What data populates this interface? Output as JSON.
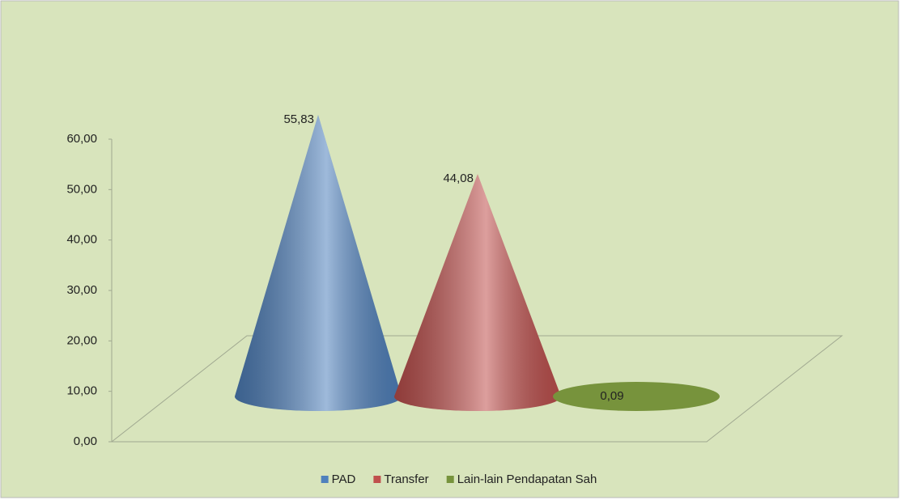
{
  "chart_data": {
    "type": "cone",
    "categories": [
      null
    ],
    "series": [
      {
        "name": "PAD",
        "color": "#4f81bd",
        "values": [
          55.83
        ],
        "value_labels": [
          "55,83"
        ]
      },
      {
        "name": "Transfer",
        "color": "#c0504d",
        "values": [
          44.08
        ],
        "value_labels": [
          "44,08"
        ]
      },
      {
        "name": "Lain-lain Pendapatan Sah",
        "color": "#77933c",
        "values": [
          0.09
        ],
        "value_labels": [
          "0,09"
        ]
      }
    ],
    "ylim": [
      0,
      60
    ],
    "yticks": [
      {
        "value": 0,
        "label": "0,00"
      },
      {
        "value": 10,
        "label": "10,00"
      },
      {
        "value": 20,
        "label": "20,00"
      },
      {
        "value": 30,
        "label": "30,00"
      },
      {
        "value": 40,
        "label": "40,00"
      },
      {
        "value": 50,
        "label": "50,00"
      },
      {
        "value": 60,
        "label": "60,00"
      }
    ],
    "legend": "bottom"
  }
}
